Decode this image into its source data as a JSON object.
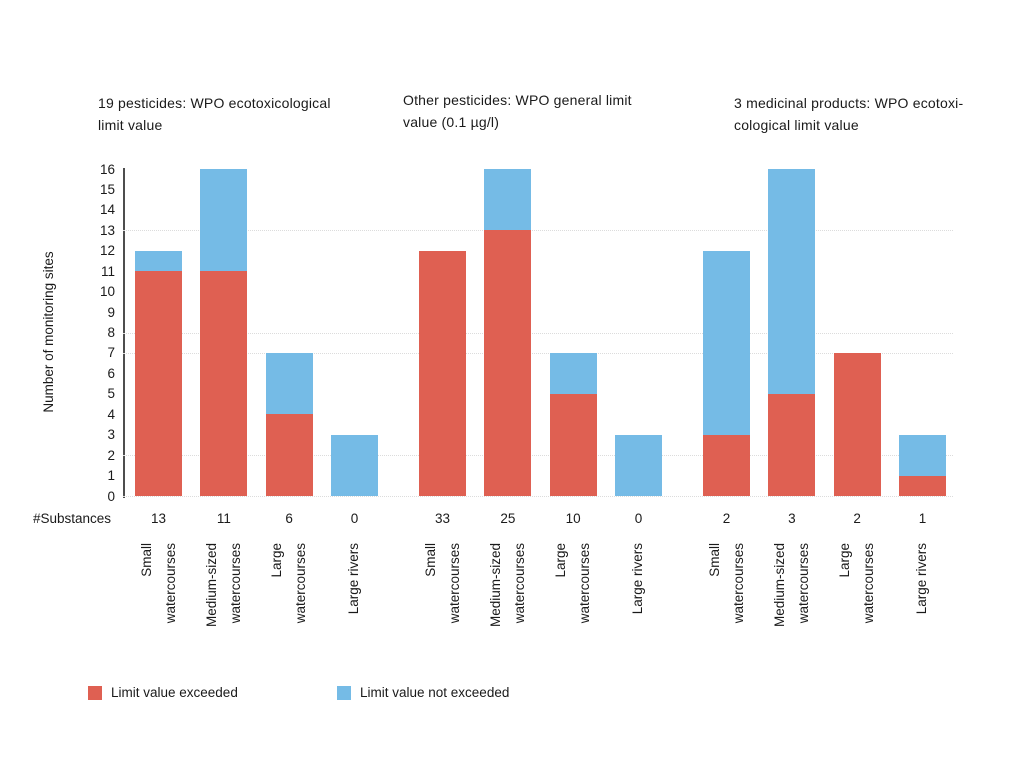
{
  "chart_data": {
    "type": "bar",
    "stacked": true,
    "ylabel": "Number of monitoring sites",
    "ylim": [
      0,
      16
    ],
    "ytick_step": 1,
    "grid": "dotted-horizontal",
    "gridlines_at": [
      0,
      2,
      7,
      8,
      13
    ],
    "legend_position": "bottom",
    "substances_row_label": "#Substances",
    "categories": [
      "Small watercourses",
      "Medium-sized watercourses",
      "Large watercourses",
      "Large rivers"
    ],
    "category_lines": [
      [
        "Small",
        "watercourses"
      ],
      [
        "Medium-sized",
        "watercourses"
      ],
      [
        "Large",
        "watercourses"
      ],
      [
        "Large rivers"
      ]
    ],
    "series_names": [
      "Limit value exceeded",
      "Limit value not exceeded"
    ],
    "colors": {
      "exceeded": "#DF6052",
      "not_exceeded": "#75BBE6"
    },
    "panels": [
      {
        "title": "19 pesticides: WPO ecotoxicological limit value",
        "title_lines": [
          "19 pesticides: WPO ecotoxicological",
          "limit value"
        ],
        "substances": [
          13,
          11,
          6,
          0
        ],
        "series": [
          {
            "name": "Limit value exceeded",
            "values": [
              11,
              11,
              4,
              0
            ]
          },
          {
            "name": "Limit value not exceeded",
            "values": [
              1,
              5,
              3,
              3
            ]
          }
        ]
      },
      {
        "title": "Other pesticides: WPO general limit value (0.1 µg/l)",
        "title_lines": [
          "Other pesticides: WPO general limit",
          "value (0.1 µg/l)"
        ],
        "substances": [
          33,
          25,
          10,
          0
        ],
        "series": [
          {
            "name": "Limit value exceeded",
            "values": [
              12,
              13,
              5,
              0
            ]
          },
          {
            "name": "Limit value not exceeded",
            "values": [
              0,
              3,
              2,
              3
            ]
          }
        ]
      },
      {
        "title": "3 medicinal products: WPO ecotoxicological limit value",
        "title_lines": [
          "3 medicinal products: WPO ecotoxi-",
          "cological limit value"
        ],
        "substances": [
          2,
          3,
          2,
          1
        ],
        "series": [
          {
            "name": "Limit value exceeded",
            "values": [
              3,
              5,
              7,
              1
            ]
          },
          {
            "name": "Limit value not exceeded",
            "values": [
              9,
              11,
              0,
              2
            ]
          }
        ]
      }
    ]
  }
}
